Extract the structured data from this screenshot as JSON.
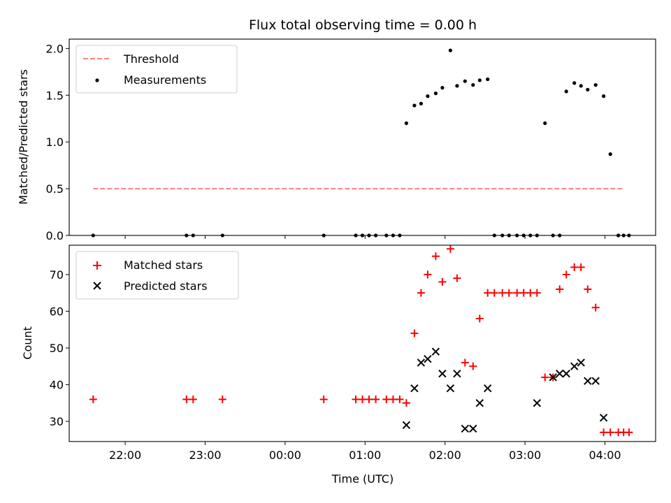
{
  "chart_data": [
    {
      "type": "scatter",
      "title": "Flux total observing time = 0.00 h",
      "xlabel": "",
      "ylabel": "Matched/Predicted stars",
      "xlim": [
        "21:18",
        "04:38"
      ],
      "ylim": [
        0,
        2.1
      ],
      "yticks": [
        "0.0",
        "0.5",
        "1.0",
        "1.5",
        "2.0"
      ],
      "grid": false,
      "legend_position": "top-left",
      "threshold": {
        "name": "Threshold",
        "value": 0.5,
        "x_start": "21:36",
        "x_end": "04:14",
        "color": "#ff7f7f",
        "style": "dashed"
      },
      "series": [
        {
          "name": "Measurements",
          "color": "#000000",
          "marker": "dot",
          "x": [
            "21:36",
            "22:46",
            "22:51",
            "23:13",
            "00:29",
            "00:53",
            "00:58",
            "01:03",
            "01:08",
            "01:16",
            "01:21",
            "01:26",
            "01:31",
            "01:37",
            "01:42",
            "01:47",
            "01:53",
            "01:58",
            "02:04",
            "02:09",
            "02:15",
            "02:21",
            "02:26",
            "02:32",
            "02:37",
            "02:43",
            "02:48",
            "02:54",
            "02:59",
            "03:04",
            "03:09",
            "03:15",
            "03:21",
            "03:26",
            "03:31",
            "03:37",
            "03:42",
            "03:47",
            "03:53",
            "03:59",
            "04:04",
            "04:10",
            "04:14",
            "04:18"
          ],
          "y": [
            0,
            0,
            0,
            0,
            0,
            0,
            0,
            0,
            0,
            0,
            0,
            0,
            1.2,
            1.39,
            1.41,
            1.49,
            1.52,
            1.58,
            1.98,
            1.6,
            1.65,
            1.61,
            1.66,
            1.67,
            0,
            0,
            0,
            0,
            0,
            0,
            0,
            1.2,
            0,
            0,
            1.54,
            1.63,
            1.6,
            1.56,
            1.61,
            1.49,
            0.87,
            0,
            0,
            0
          ]
        }
      ]
    },
    {
      "type": "scatter",
      "title": "",
      "xlabel": "Time (UTC)",
      "ylabel": "Count",
      "xlim": [
        "21:18",
        "04:38"
      ],
      "ylim": [
        24.5,
        78
      ],
      "yticks": [
        "30",
        "40",
        "50",
        "60",
        "70"
      ],
      "xticks": [
        "22:00",
        "23:00",
        "00:00",
        "01:00",
        "02:00",
        "03:00",
        "04:00"
      ],
      "grid": false,
      "legend_position": "top-left",
      "series": [
        {
          "name": "Matched stars",
          "color": "#ff0000",
          "marker": "plus",
          "x": [
            "21:36",
            "22:46",
            "22:51",
            "23:13",
            "00:29",
            "00:53",
            "00:58",
            "01:03",
            "01:08",
            "01:16",
            "01:21",
            "01:26",
            "01:31",
            "01:37",
            "01:42",
            "01:47",
            "01:53",
            "01:58",
            "02:04",
            "02:09",
            "02:15",
            "02:21",
            "02:26",
            "02:32",
            "02:37",
            "02:43",
            "02:48",
            "02:54",
            "02:59",
            "03:04",
            "03:09",
            "03:15",
            "03:21",
            "03:26",
            "03:31",
            "03:37",
            "03:42",
            "03:47",
            "03:53",
            "03:59",
            "04:04",
            "04:10",
            "04:14",
            "04:18"
          ],
          "y": [
            36,
            36,
            36,
            36,
            36,
            36,
            36,
            36,
            36,
            36,
            36,
            36,
            35,
            54,
            65,
            70,
            75,
            68,
            77,
            69,
            46,
            45,
            58,
            65,
            65,
            65,
            65,
            65,
            65,
            65,
            65,
            42,
            42,
            66,
            70,
            72,
            72,
            66,
            61,
            27,
            27,
            27,
            27,
            27
          ]
        },
        {
          "name": "Predicted stars",
          "color": "#000000",
          "marker": "x",
          "x": [
            "01:31",
            "01:37",
            "01:42",
            "01:47",
            "01:53",
            "01:58",
            "02:04",
            "02:09",
            "02:15",
            "02:21",
            "02:26",
            "02:32",
            "03:09",
            "03:21",
            "03:26",
            "03:31",
            "03:37",
            "03:42",
            "03:47",
            "03:53",
            "03:59"
          ],
          "y": [
            29,
            39,
            46,
            47,
            49,
            43,
            39,
            43,
            28,
            28,
            35,
            39,
            35,
            42,
            43,
            43,
            45,
            46,
            41,
            41,
            31
          ]
        }
      ]
    }
  ]
}
